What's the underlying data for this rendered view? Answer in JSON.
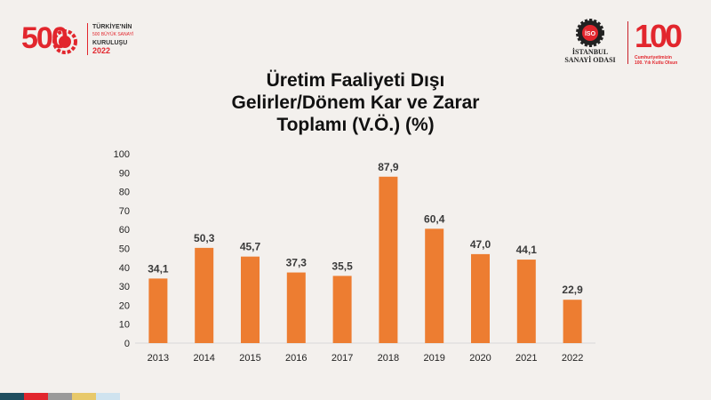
{
  "header": {
    "left_logo": {
      "number": "500",
      "line1": "TÜRKİYE'NİN",
      "line2": "500 BÜYÜK SANAYİ",
      "line3": "KURULUŞU",
      "year": "2022"
    },
    "iso_logo": {
      "badge": "İSO",
      "line1": "İSTANBUL",
      "line2": "SANAYİ ODASI"
    },
    "centennial_logo": {
      "number": "100",
      "badge": "İSO",
      "line1": "Cumhuriyetimizin",
      "line2": "100. Yılı Kutlu Olsun"
    }
  },
  "title_lines": [
    "Üretim Faaliyeti Dışı",
    "Gelirler/Dönem Kar ve Zarar",
    "Toplamı (V.Ö.) (%)"
  ],
  "colors": {
    "bar": "#ed7d31",
    "accent_red": "#e2262d",
    "footer": [
      "#1f4e5f",
      "#e2262d",
      "#9a9a9a",
      "#e8c96a",
      "#cfe3ef"
    ]
  },
  "chart_data": {
    "type": "bar",
    "categories": [
      "2013",
      "2014",
      "2015",
      "2016",
      "2017",
      "2018",
      "2019",
      "2020",
      "2021",
      "2022"
    ],
    "values": [
      34.1,
      50.3,
      45.7,
      37.3,
      35.5,
      87.9,
      60.4,
      47.0,
      44.1,
      22.9
    ],
    "data_labels": [
      "34,1",
      "50,3",
      "45,7",
      "37,3",
      "35,5",
      "87,9",
      "60,4",
      "47,0",
      "44,1",
      "22,9"
    ],
    "y_ticks": [
      "0",
      "10",
      "20",
      "30",
      "40",
      "50",
      "60",
      "70",
      "80",
      "90",
      "100"
    ],
    "ylim": [
      0,
      100
    ],
    "grid": false,
    "legend": "none"
  }
}
